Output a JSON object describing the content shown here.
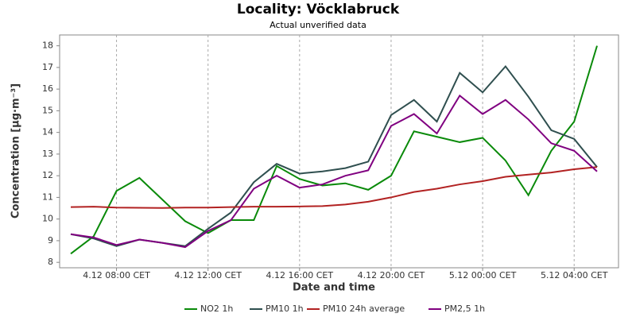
{
  "chart_data": {
    "type": "line",
    "title": "Locality: Vöcklabruck",
    "subtitle": "Actual unverified data",
    "x_label": "Date and time",
    "y_label": "Concentration [µg·m⁻³]",
    "categories": [
      null,
      null,
      "4.12 08:00 CET",
      null,
      null,
      null,
      "4.12 12:00 CET",
      null,
      null,
      null,
      "4.12 16:00 CET",
      null,
      null,
      null,
      "4.12 20:00 CET",
      null,
      null,
      null,
      "5.12 00:00 CET",
      null,
      null,
      null,
      "5.12 04:00 CET",
      null
    ],
    "ylim": [
      7.75,
      18.5
    ],
    "yticks": [
      8,
      9,
      10,
      11,
      12,
      13,
      14,
      15,
      16,
      17,
      18
    ],
    "grid": true,
    "legend": "bottom",
    "series": [
      {
        "name": "NO2 1h",
        "color": "#0a8a0a",
        "values": [
          8.4,
          9.2,
          11.3,
          11.9,
          10.9,
          9.9,
          9.35,
          9.95,
          9.95,
          12.45,
          11.85,
          11.55,
          11.65,
          11.35,
          12.0,
          14.05,
          13.8,
          13.55,
          13.75,
          12.7,
          11.1,
          13.15,
          14.5,
          18.0
        ]
      },
      {
        "name": "PM10 1h",
        "color": "#2f4f4f",
        "values": [
          9.3,
          9.1,
          8.75,
          9.05,
          8.9,
          8.75,
          9.55,
          10.3,
          11.7,
          12.55,
          12.1,
          12.2,
          12.35,
          12.65,
          14.8,
          15.5,
          14.5,
          16.75,
          15.85,
          17.05,
          15.65,
          14.1,
          13.7,
          12.4
        ]
      },
      {
        "name": "PM10 24h average",
        "color": "#b22222",
        "values": [
          10.55,
          10.57,
          10.53,
          10.52,
          10.51,
          10.53,
          10.53,
          10.55,
          10.57,
          10.57,
          10.58,
          10.6,
          10.67,
          10.8,
          11.0,
          11.25,
          11.4,
          11.6,
          11.75,
          11.95,
          12.05,
          12.15,
          12.3,
          12.4
        ]
      },
      {
        "name": "PM2,5 1h",
        "color": "#800080",
        "values": [
          9.3,
          9.15,
          8.8,
          9.05,
          8.9,
          8.7,
          9.45,
          9.95,
          11.4,
          12.0,
          11.45,
          11.6,
          12.0,
          12.25,
          14.3,
          14.85,
          13.95,
          15.7,
          14.85,
          15.5,
          14.6,
          13.5,
          13.15,
          12.2
        ]
      }
    ]
  }
}
